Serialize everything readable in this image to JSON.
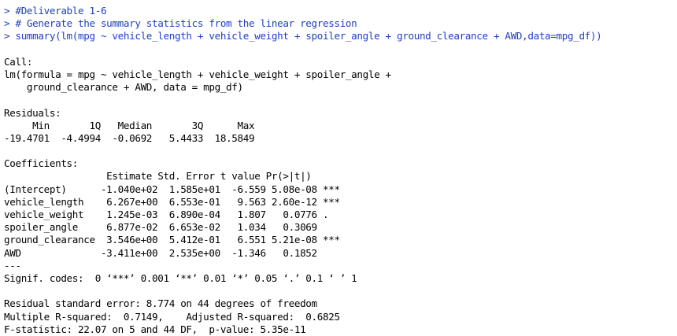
{
  "console": {
    "input_lines": [
      "> #Deliverable 1-6",
      "> # Generate the summary statistics from the linear regression",
      "> summary(lm(mpg ~ vehicle_length + vehicle_weight + spoiler_angle + ground_clearance + AWD,data=mpg_df))"
    ],
    "call": {
      "header": "Call:",
      "line1": "lm(formula = mpg ~ vehicle_length + vehicle_weight + spoiler_angle +",
      "line2": "    ground_clearance + AWD, data = mpg_df)"
    },
    "residuals": {
      "header": "Residuals:",
      "labels_line": "     Min       1Q   Median       3Q      Max ",
      "values_line": "-19.4701  -4.4994  -0.0692   5.4433  18.5849 "
    },
    "coefficients": {
      "header": "Coefficients:",
      "columns_line": "                  Estimate Std. Error t value Pr(>|t|)    ",
      "rows": [
        "(Intercept)      -1.040e+02  1.585e+01  -6.559 5.08e-08 ***",
        "vehicle_length    6.267e+00  6.553e-01   9.563 2.60e-12 ***",
        "vehicle_weight    1.245e-03  6.890e-04   1.807   0.0776 .  ",
        "spoiler_angle     6.877e-02  6.653e-02   1.034   0.3069    ",
        "ground_clearance  3.546e+00  5.412e-01   6.551 5.21e-08 ***",
        "AWD              -3.411e+00  2.535e+00  -1.346   0.1852    "
      ],
      "separator": "---",
      "signif_codes": "Signif. codes:  0 ‘***’ 0.001 ‘**’ 0.01 ‘*’ 0.05 ‘.’ 0.1 ‘ ’ 1"
    },
    "fit_stats": {
      "residual_se": "Residual standard error: 8.774 on 44 degrees of freedom",
      "r_squared": "Multiple R-squared:  0.7149,\tAdjusted R-squared:  0.6825 ",
      "f_statistic": "F-statistic: 22.07 on 5 and 44 DF,  p-value: 5.35e-11"
    }
  },
  "colors": {
    "input_text": "#1f3fbf",
    "output_text": "#000000",
    "background": "#ffffff"
  }
}
